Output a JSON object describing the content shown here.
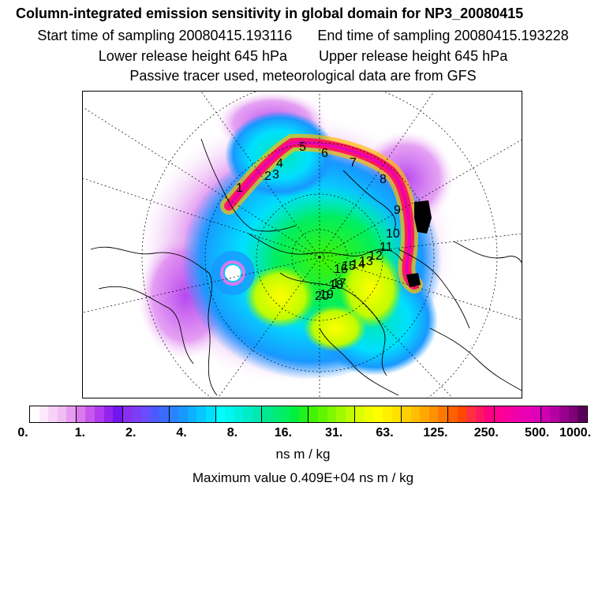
{
  "header": {
    "title": "Column-integrated emission sensitivity in global domain for NP3_20080415",
    "start_label": "Start time of sampling",
    "start_value": "20080415.193116",
    "end_label": "End time of sampling",
    "end_value": "20080415.193228",
    "lower_label": "Lower release height",
    "lower_value": "645 hPa",
    "upper_label": "Upper release height",
    "upper_value": "645 hPa",
    "note": "Passive tracer used, meteorological data are from GFS"
  },
  "colorbar": {
    "tick_labels": [
      "0.",
      "1.",
      "2.",
      "4.",
      "8.",
      "16.",
      "31.",
      "63.",
      "125.",
      "250.",
      "500.",
      "1000."
    ],
    "colors": [
      "#ffffff",
      "#fbe9fb",
      "#f6d3f6",
      "#f0bdf2",
      "#e79cf0",
      "#da78ee",
      "#c957ee",
      "#b13aef",
      "#9224ee",
      "#7215ef",
      "#8a2ff0",
      "#7a3ef5",
      "#6a4cff",
      "#4a5aff",
      "#3a6bff",
      "#2a82ff",
      "#1898ff",
      "#0fb0ff",
      "#06c8ff",
      "#00dfff",
      "#00ffff",
      "#00f7ef",
      "#00f0dc",
      "#00ecc8",
      "#00e8b0",
      "#00e890",
      "#00eb78",
      "#00ee60",
      "#00f040",
      "#20f220",
      "#40f400",
      "#60f600",
      "#80f800",
      "#a0fa00",
      "#c0fc00",
      "#dcff00",
      "#f0ff00",
      "#ffff00",
      "#fff000",
      "#ffe000",
      "#ffd000",
      "#ffbe00",
      "#ffa800",
      "#ff9000",
      "#ff7800",
      "#ff6000",
      "#ff4800",
      "#ff3040",
      "#ff1860",
      "#ff0080",
      "#ff0090",
      "#f800a0",
      "#f000aa",
      "#e800b4",
      "#de00b8",
      "#cc00b0",
      "#b400a0",
      "#9a008e",
      "#800078",
      "#5a0058"
    ],
    "unit": "ns m / kg"
  },
  "footer": {
    "max_label": "Maximum value",
    "max_value": "0.409E+04",
    "max_unit": "ns m / kg"
  },
  "map": {
    "projection": "north-polar-stereographic",
    "trajectory_labels": [
      "1",
      "2",
      "3",
      "4",
      "5",
      "6",
      "7",
      "8",
      "9",
      "10",
      "11",
      "12",
      "13",
      "14",
      "15",
      "16",
      "17",
      "18",
      "19",
      "20"
    ]
  }
}
